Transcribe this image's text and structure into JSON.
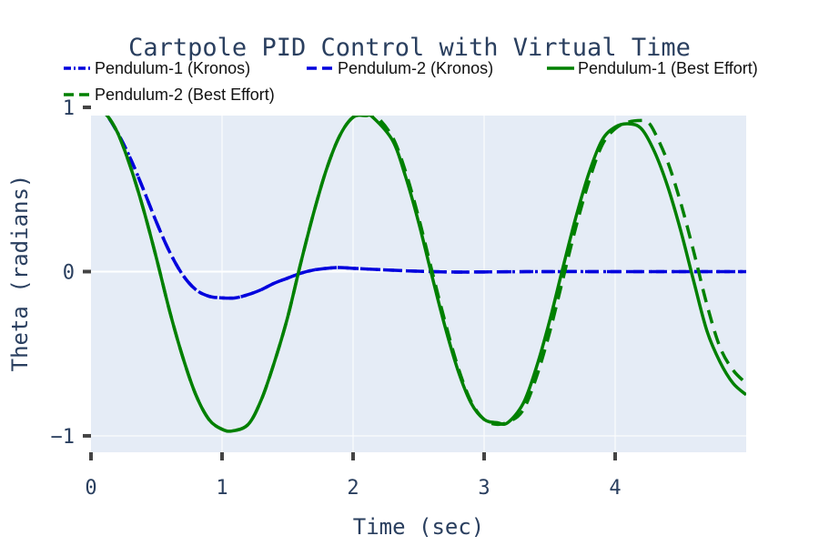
{
  "chart_data": {
    "type": "line",
    "title": "Cartpole PID Control with Virtual Time",
    "xlabel": "Time (sec)",
    "ylabel": "Theta (radians)",
    "xlim": [
      0,
      5
    ],
    "ylim": [
      -1.1,
      0.95
    ],
    "x_ticks": [
      0,
      1,
      2,
      3,
      4
    ],
    "x_tick_labels": [
      "0",
      "1",
      "2",
      "3",
      "4"
    ],
    "y_ticks": [
      -1,
      0,
      1
    ],
    "y_tick_labels": [
      "−1",
      "0",
      "1"
    ],
    "grid": true,
    "legend_position": "top",
    "plot_background": "#e5ecf6",
    "series": [
      {
        "name": "Pendulum-1 (Kronos)",
        "color": "#0000dd",
        "dash": "dashdot",
        "x": [
          0,
          0.1,
          0.2,
          0.3,
          0.4,
          0.5,
          0.6,
          0.7,
          0.8,
          0.9,
          1.0,
          1.1,
          1.2,
          1.3,
          1.4,
          1.5,
          1.6,
          1.7,
          1.8,
          1.9,
          2.0,
          2.2,
          2.4,
          2.6,
          2.8,
          3.0,
          3.5,
          4.0,
          4.5,
          5.0
        ],
        "y": [
          1.0,
          0.97,
          0.85,
          0.69,
          0.5,
          0.3,
          0.12,
          -0.02,
          -0.11,
          -0.15,
          -0.16,
          -0.16,
          -0.14,
          -0.11,
          -0.07,
          -0.04,
          -0.01,
          0.01,
          0.02,
          0.025,
          0.02,
          0.012,
          0.005,
          0.0,
          -0.003,
          -0.002,
          0.0,
          0.0,
          0.0,
          0.0
        ]
      },
      {
        "name": "Pendulum-2 (Kronos)",
        "color": "#0000dd",
        "dash": "dash",
        "x": [
          0,
          0.1,
          0.2,
          0.3,
          0.4,
          0.5,
          0.6,
          0.7,
          0.8,
          0.9,
          1.0,
          1.1,
          1.2,
          1.3,
          1.4,
          1.5,
          1.6,
          1.7,
          1.8,
          1.9,
          2.0,
          2.2,
          2.4,
          2.6,
          2.8,
          3.0,
          3.5,
          4.0,
          4.5,
          5.0
        ],
        "y": [
          1.0,
          0.97,
          0.85,
          0.69,
          0.5,
          0.3,
          0.12,
          -0.02,
          -0.11,
          -0.15,
          -0.16,
          -0.16,
          -0.14,
          -0.11,
          -0.07,
          -0.04,
          -0.01,
          0.01,
          0.02,
          0.025,
          0.02,
          0.012,
          0.005,
          0.0,
          -0.003,
          -0.002,
          0.0,
          0.0,
          0.0,
          0.0
        ]
      },
      {
        "name": "Pendulum-1 (Best Effort)",
        "color": "#008000",
        "dash": "solid",
        "x": [
          0,
          0.1,
          0.2,
          0.3,
          0.4,
          0.5,
          0.6,
          0.7,
          0.8,
          0.9,
          1.0,
          1.08,
          1.2,
          1.3,
          1.4,
          1.5,
          1.6,
          1.7,
          1.8,
          1.9,
          2.0,
          2.1,
          2.15,
          2.3,
          2.4,
          2.5,
          2.6,
          2.7,
          2.8,
          2.9,
          3.0,
          3.1,
          3.18,
          3.3,
          3.4,
          3.5,
          3.6,
          3.7,
          3.8,
          3.9,
          4.0,
          4.1,
          4.2,
          4.3,
          4.4,
          4.5,
          4.6,
          4.7,
          4.8,
          4.9,
          5.0
        ],
        "y": [
          1.0,
          0.97,
          0.85,
          0.64,
          0.38,
          0.08,
          -0.24,
          -0.52,
          -0.75,
          -0.9,
          -0.96,
          -0.97,
          -0.93,
          -0.78,
          -0.55,
          -0.28,
          0.05,
          0.36,
          0.63,
          0.83,
          0.94,
          0.95,
          0.94,
          0.8,
          0.58,
          0.3,
          -0.02,
          -0.33,
          -0.6,
          -0.8,
          -0.9,
          -0.92,
          -0.92,
          -0.8,
          -0.58,
          -0.3,
          0.02,
          0.33,
          0.6,
          0.8,
          0.88,
          0.9,
          0.87,
          0.73,
          0.52,
          0.25,
          -0.06,
          -0.36,
          -0.55,
          -0.68,
          -0.75
        ]
      },
      {
        "name": "Pendulum-2 (Best Effort)",
        "color": "#008000",
        "dash": "dash",
        "x": [
          0,
          0.1,
          0.2,
          0.3,
          0.4,
          0.5,
          0.6,
          0.7,
          0.8,
          0.9,
          1.0,
          1.08,
          1.2,
          1.3,
          1.4,
          1.5,
          1.6,
          1.7,
          1.8,
          1.9,
          2.0,
          2.1,
          2.17,
          2.3,
          2.4,
          2.5,
          2.6,
          2.7,
          2.8,
          2.9,
          3.0,
          3.1,
          3.2,
          3.3,
          3.4,
          3.5,
          3.6,
          3.7,
          3.8,
          3.9,
          4.0,
          4.1,
          4.2,
          4.25,
          4.3,
          4.4,
          4.5,
          4.6,
          4.7,
          4.8,
          4.9,
          5.0
        ],
        "y": [
          1.0,
          0.97,
          0.85,
          0.64,
          0.38,
          0.08,
          -0.24,
          -0.52,
          -0.75,
          -0.9,
          -0.96,
          -0.97,
          -0.93,
          -0.78,
          -0.55,
          -0.28,
          0.05,
          0.36,
          0.63,
          0.83,
          0.94,
          0.95,
          0.95,
          0.82,
          0.61,
          0.33,
          0.01,
          -0.3,
          -0.58,
          -0.79,
          -0.9,
          -0.93,
          -0.91,
          -0.84,
          -0.64,
          -0.37,
          -0.05,
          0.27,
          0.55,
          0.77,
          0.87,
          0.91,
          0.92,
          0.91,
          0.85,
          0.67,
          0.42,
          0.12,
          -0.2,
          -0.46,
          -0.6,
          -0.68
        ]
      }
    ]
  }
}
